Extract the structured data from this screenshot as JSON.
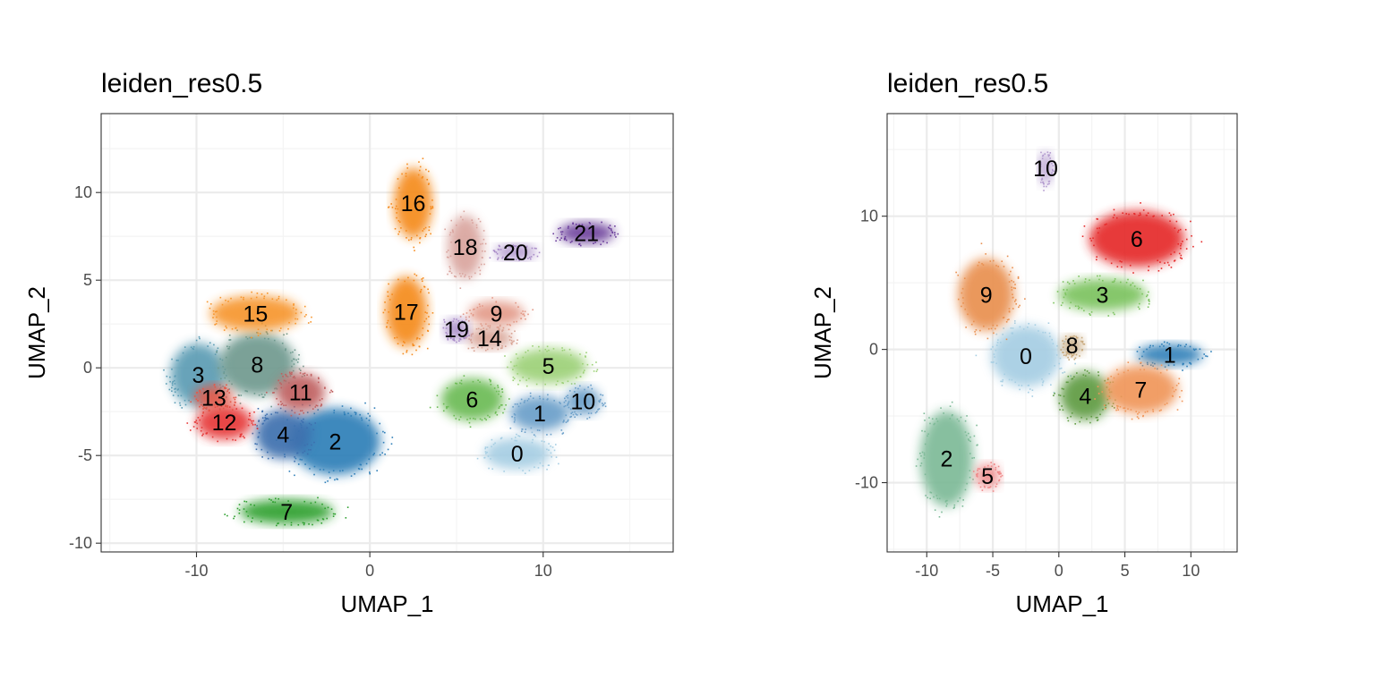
{
  "chart_data": [
    {
      "type": "scatter",
      "title": "leiden_res0.5",
      "xlabel": "UMAP_1",
      "ylabel": "UMAP_2",
      "xlim": [
        -15.5,
        17.5
      ],
      "ylim": [
        -10.5,
        14.5
      ],
      "xticks": [
        -10,
        0,
        10
      ],
      "yticks": [
        -10,
        -5,
        0,
        5,
        10
      ],
      "xtick_labels": [
        "-10",
        "0",
        "10"
      ],
      "ytick_labels": [
        "-10",
        "-5",
        "0",
        "5",
        "10"
      ],
      "grid": true,
      "clusters": [
        {
          "label": "0",
          "x": 8.5,
          "y": -4.9,
          "color": "#a6cee3",
          "spread": [
            1.9,
            0.9
          ]
        },
        {
          "label": "1",
          "x": 9.8,
          "y": -2.6,
          "color": "#6b9fc9",
          "spread": [
            1.7,
            1.0
          ]
        },
        {
          "label": "2",
          "x": -2.0,
          "y": -4.2,
          "color": "#2f7fb8",
          "spread": [
            2.6,
            1.9
          ]
        },
        {
          "label": "3",
          "x": -9.9,
          "y": -0.4,
          "color": "#5b9cb4",
          "spread": [
            1.6,
            1.8
          ]
        },
        {
          "label": "4",
          "x": -5.0,
          "y": -3.8,
          "color": "#3d6fae",
          "spread": [
            1.6,
            1.4
          ]
        },
        {
          "label": "5",
          "x": 10.3,
          "y": 0.1,
          "color": "#9dd178",
          "spread": [
            2.2,
            1.0
          ]
        },
        {
          "label": "6",
          "x": 5.9,
          "y": -1.8,
          "color": "#6cbb55",
          "spread": [
            1.8,
            1.2
          ]
        },
        {
          "label": "7",
          "x": -4.8,
          "y": -8.2,
          "color": "#2ea02f",
          "spread": [
            2.7,
            0.7
          ]
        },
        {
          "label": "8",
          "x": -6.5,
          "y": 0.2,
          "color": "#6f9a8f",
          "spread": [
            2.2,
            1.8
          ]
        },
        {
          "label": "9",
          "x": 7.3,
          "y": 3.1,
          "color": "#e39a88",
          "spread": [
            1.6,
            0.7
          ]
        },
        {
          "label": "10",
          "x": 12.3,
          "y": -1.9,
          "color": "#6b9fc9",
          "spread": [
            1.0,
            0.8
          ]
        },
        {
          "label": "11",
          "x": -4.0,
          "y": -1.4,
          "color": "#c06060",
          "spread": [
            1.4,
            1.1
          ]
        },
        {
          "label": "12",
          "x": -8.4,
          "y": -3.1,
          "color": "#e63838",
          "spread": [
            1.6,
            1.0
          ]
        },
        {
          "label": "13",
          "x": -9.0,
          "y": -1.7,
          "color": "#e45a4a",
          "spread": [
            1.1,
            0.7
          ]
        },
        {
          "label": "14",
          "x": 6.9,
          "y": 1.7,
          "color": "#d8a394",
          "spread": [
            1.3,
            0.6
          ]
        },
        {
          "label": "15",
          "x": -6.6,
          "y": 3.1,
          "color": "#f7962d",
          "spread": [
            2.6,
            1.0
          ]
        },
        {
          "label": "16",
          "x": 2.5,
          "y": 9.4,
          "color": "#f58b1f",
          "spread": [
            1.1,
            2.0
          ]
        },
        {
          "label": "17",
          "x": 2.1,
          "y": 3.2,
          "color": "#f58b1f",
          "spread": [
            1.2,
            2.0
          ]
        },
        {
          "label": "18",
          "x": 5.5,
          "y": 6.9,
          "color": "#d9a49e",
          "spread": [
            1.0,
            1.8
          ]
        },
        {
          "label": "19",
          "x": 5.0,
          "y": 2.2,
          "color": "#a98cc8",
          "spread": [
            0.7,
            0.6
          ]
        },
        {
          "label": "20",
          "x": 8.4,
          "y": 6.6,
          "color": "#a98cc8",
          "spread": [
            1.2,
            0.4
          ]
        },
        {
          "label": "21",
          "x": 12.5,
          "y": 7.7,
          "color": "#6a3d9a",
          "spread": [
            1.6,
            0.6
          ]
        }
      ]
    },
    {
      "type": "scatter",
      "title": "leiden_res0.5",
      "xlabel": "UMAP_1",
      "ylabel": "UMAP_2",
      "xlim": [
        -13,
        13.5
      ],
      "ylim": [
        -15.2,
        17.7
      ],
      "xticks": [
        -10,
        -5,
        0,
        5,
        10
      ],
      "yticks": [
        -10,
        0,
        10
      ],
      "xtick_labels": [
        "-10",
        "-5",
        "0",
        "5",
        "10"
      ],
      "ytick_labels": [
        "-10",
        "0",
        "10"
      ],
      "grid": true,
      "clusters": [
        {
          "label": "0",
          "x": -2.5,
          "y": -0.5,
          "color": "#a6cee3",
          "spread": [
            2.6,
            2.3
          ]
        },
        {
          "label": "1",
          "x": 8.4,
          "y": -0.4,
          "color": "#2f7fb8",
          "spread": [
            2.5,
            0.8
          ]
        },
        {
          "label": "2",
          "x": -8.5,
          "y": -8.2,
          "color": "#7dba97",
          "spread": [
            2.0,
            3.6
          ]
        },
        {
          "label": "3",
          "x": 3.3,
          "y": 4.1,
          "color": "#7cc35f",
          "spread": [
            3.3,
            1.2
          ]
        },
        {
          "label": "4",
          "x": 2.0,
          "y": -3.5,
          "color": "#5f9b43",
          "spread": [
            1.9,
            1.8
          ]
        },
        {
          "label": "5",
          "x": -5.4,
          "y": -9.5,
          "color": "#ef8a8a",
          "spread": [
            0.9,
            0.9
          ]
        },
        {
          "label": "6",
          "x": 5.9,
          "y": 8.3,
          "color": "#e52a2a",
          "spread": [
            3.6,
            2.1
          ]
        },
        {
          "label": "7",
          "x": 6.2,
          "y": -3.0,
          "color": "#f0965a",
          "spread": [
            2.8,
            1.8
          ]
        },
        {
          "label": "8",
          "x": 1.0,
          "y": 0.3,
          "color": "#c7a87a",
          "spread": [
            0.8,
            0.7
          ]
        },
        {
          "label": "9",
          "x": -5.5,
          "y": 4.1,
          "color": "#e99050",
          "spread": [
            2.1,
            2.7
          ]
        },
        {
          "label": "10",
          "x": -1.0,
          "y": 13.6,
          "color": "#b39bcf",
          "spread": [
            0.5,
            1.2
          ]
        }
      ]
    }
  ]
}
